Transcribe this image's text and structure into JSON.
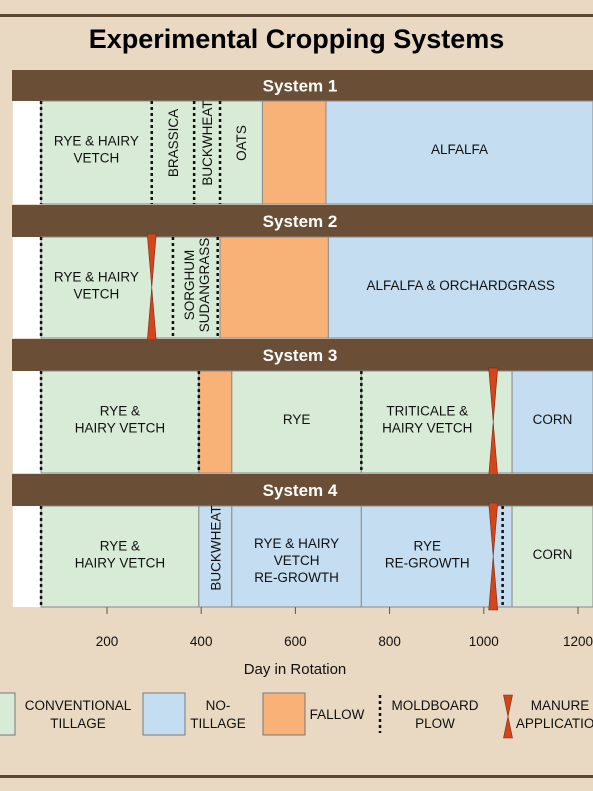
{
  "title": "Experimental Cropping Systems",
  "x_axis": {
    "label": "Day in Rotation",
    "ticks": [
      200,
      400,
      600,
      800,
      1000,
      1200
    ],
    "range": [
      0,
      1260
    ]
  },
  "colors": {
    "conventional": "#d7ebd6",
    "notill": "#c4ddf0",
    "fallow": "#f8b278",
    "header": "#6a4e35",
    "manure": "#d3451b"
  },
  "systems": [
    {
      "title": "System 1",
      "segments": [
        {
          "start": 0,
          "end": 60,
          "type": "blank",
          "label": []
        },
        {
          "start": 60,
          "end": 530,
          "type": "conventional",
          "label": []
        },
        {
          "start": 530,
          "end": 665,
          "type": "fallow",
          "label": []
        },
        {
          "start": 665,
          "end": 1270,
          "type": "notill",
          "label": [
            "ALFALFA"
          ]
        }
      ],
      "crops": [
        {
          "start": 60,
          "end": 295,
          "lines": [
            "RYE & HAIRY",
            "VETCH"
          ],
          "vertical": false
        },
        {
          "start": 295,
          "end": 385,
          "lines": [
            "BRASSICA"
          ],
          "vertical": true
        },
        {
          "start": 385,
          "end": 440,
          "lines": [
            "BUCKWHEAT"
          ],
          "vertical": true
        },
        {
          "start": 440,
          "end": 530,
          "lines": [
            "OATS"
          ],
          "vertical": true
        }
      ],
      "plow": [
        60,
        295,
        385,
        440
      ],
      "manure": []
    },
    {
      "title": "System 2",
      "segments": [
        {
          "start": 0,
          "end": 60,
          "type": "blank",
          "label": []
        },
        {
          "start": 60,
          "end": 440,
          "type": "conventional",
          "label": []
        },
        {
          "start": 440,
          "end": 670,
          "type": "fallow",
          "label": []
        },
        {
          "start": 670,
          "end": 1270,
          "type": "notill",
          "label": [
            "ALFALFA  & ORCHARDGRASS"
          ]
        }
      ],
      "crops": [
        {
          "start": 60,
          "end": 295,
          "lines": [
            "RYE & HAIRY",
            "VETCH"
          ],
          "vertical": false
        },
        {
          "start": 340,
          "end": 440,
          "lines": [
            "SORGHUM",
            "SUDANGRASS"
          ],
          "vertical": true
        }
      ],
      "plow": [
        60,
        340,
        435
      ],
      "manure": [
        295
      ]
    },
    {
      "title": "System 3",
      "segments": [
        {
          "start": 0,
          "end": 60,
          "type": "blank",
          "label": []
        },
        {
          "start": 60,
          "end": 395,
          "type": "conventional",
          "label": [
            "RYE &",
            "HAIRY VETCH"
          ]
        },
        {
          "start": 395,
          "end": 465,
          "type": "fallow",
          "label": []
        },
        {
          "start": 465,
          "end": 740,
          "type": "conventional",
          "label": [
            "RYE"
          ]
        },
        {
          "start": 740,
          "end": 1060,
          "type": "conventional",
          "label": []
        },
        {
          "start": 1060,
          "end": 1270,
          "type": "notill",
          "label": [
            "CORN"
          ]
        }
      ],
      "crops": [
        {
          "start": 740,
          "end": 1020,
          "lines": [
            "TRITICALE &",
            "HAIRY VETCH"
          ],
          "vertical": false
        }
      ],
      "plow": [
        60,
        395,
        740
      ],
      "manure": [
        1020
      ]
    },
    {
      "title": "System 4",
      "segments": [
        {
          "start": 0,
          "end": 60,
          "type": "blank",
          "label": []
        },
        {
          "start": 60,
          "end": 395,
          "type": "conventional",
          "label": [
            "RYE &",
            "HAIRY VETCH"
          ]
        },
        {
          "start": 395,
          "end": 465,
          "type": "notill",
          "label": []
        },
        {
          "start": 465,
          "end": 740,
          "type": "notill",
          "label": [
            "RYE & HAIRY",
            "VETCH",
            "RE-GROWTH"
          ]
        },
        {
          "start": 740,
          "end": 1060,
          "type": "notill",
          "label": []
        },
        {
          "start": 1060,
          "end": 1270,
          "type": "conventional",
          "label": [
            "CORN"
          ]
        }
      ],
      "crops": [
        {
          "start": 395,
          "end": 465,
          "lines": [
            "BUCKWHEAT"
          ],
          "vertical": true
        },
        {
          "start": 740,
          "end": 1020,
          "lines": [
            "RYE",
            "RE-GROWTH"
          ],
          "vertical": false
        }
      ],
      "plow": [
        60,
        1040
      ],
      "manure": [
        1020
      ]
    }
  ],
  "legend": [
    {
      "kind": "swatch",
      "color": "#d7ebd6",
      "lines": [
        "CONVENTIONAL",
        "TILLAGE"
      ]
    },
    {
      "kind": "swatch",
      "color": "#c4ddf0",
      "lines": [
        "NO-",
        "TILLAGE"
      ]
    },
    {
      "kind": "swatch",
      "color": "#f8b278",
      "lines": [
        "FALLOW"
      ]
    },
    {
      "kind": "plow",
      "lines": [
        "MOLDBOARD",
        "PLOW"
      ]
    },
    {
      "kind": "manure",
      "lines": [
        "MANURE",
        "APPLICATION"
      ]
    }
  ]
}
